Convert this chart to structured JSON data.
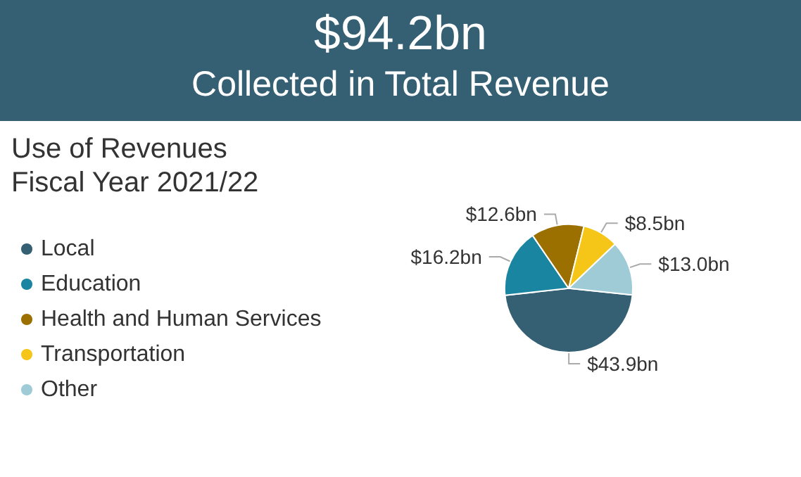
{
  "chart_data": {
    "type": "pie",
    "title": "$94.2bn",
    "subtitle": "Collected in Total Revenue",
    "legend_title": "Use of Revenues\nFiscal Year 2021/22",
    "categories": [
      "Local",
      "Education",
      "Health and Human Services",
      "Transportation",
      "Other"
    ],
    "values": [
      43.9,
      16.2,
      12.6,
      8.5,
      13.0
    ],
    "value_labels": [
      "$43.9bn",
      "$16.2bn",
      "$12.6bn",
      "$8.5bn",
      "$13.0bn"
    ],
    "colors": [
      "#355f73",
      "#1a85a0",
      "#9c7000",
      "#f5c518",
      "#9ecbd6"
    ],
    "legend": "left"
  }
}
